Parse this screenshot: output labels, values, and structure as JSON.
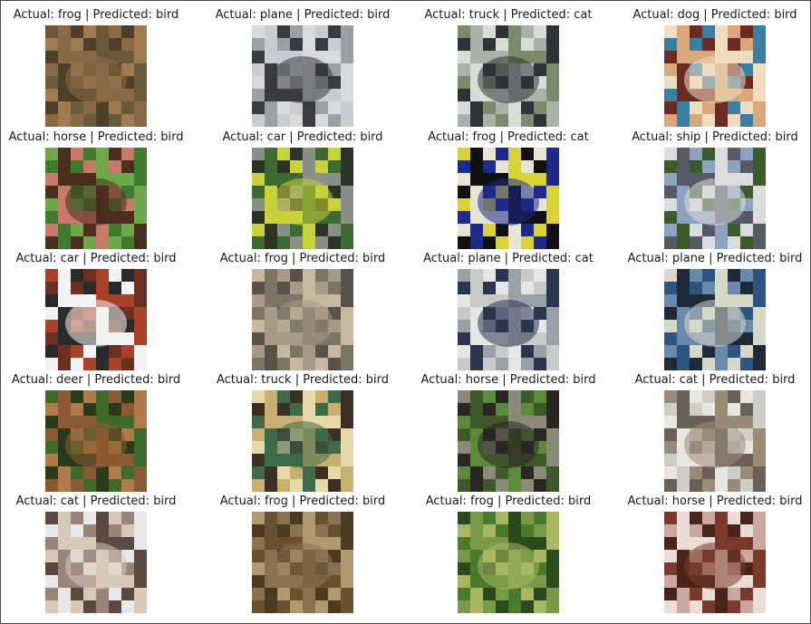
{
  "items": [
    {
      "actual": "frog",
      "predicted": "bird",
      "caption": "Actual: frog | Predicted: bird",
      "subject": "frog-thumbnail",
      "colors": [
        "#6b5a3a",
        "#8a6a45",
        "#4d3f2a",
        "#a07b50"
      ]
    },
    {
      "actual": "plane",
      "predicted": "bird",
      "caption": "Actual: plane | Predicted: bird",
      "subject": "plane-thumbnail",
      "colors": [
        "#c9ccd0",
        "#3a3b3e",
        "#9aa0a6",
        "#d8dadc"
      ]
    },
    {
      "actual": "truck",
      "predicted": "cat",
      "caption": "Actual: truck | Predicted: cat",
      "subject": "truck-thumbnail",
      "colors": [
        "#d8ddd6",
        "#2e3338",
        "#7a8a6a",
        "#a8b2a8"
      ]
    },
    {
      "actual": "dog",
      "predicted": "bird",
      "caption": "Actual: dog | Predicted: bird",
      "subject": "dog-thumbnail",
      "colors": [
        "#3a7fa3",
        "#f0ddc0",
        "#d8a77a",
        "#6c2a25"
      ]
    },
    {
      "actual": "horse",
      "predicted": "bird",
      "caption": "Actual: horse | Predicted: bird",
      "subject": "horse-thumbnail",
      "colors": [
        "#6fa84a",
        "#4a2e1e",
        "#c87a6a",
        "#3f7a2e"
      ]
    },
    {
      "actual": "car",
      "predicted": "bird",
      "caption": "Actual: car | Predicted: bird",
      "subject": "car-thumbnail",
      "colors": [
        "#3c6a32",
        "#c8d23a",
        "#2b3324",
        "#8a8f88"
      ]
    },
    {
      "actual": "frog",
      "predicted": "cat",
      "caption": "Actual: frog | Predicted: cat",
      "subject": "frog-thumbnail",
      "colors": [
        "#e8e4d4",
        "#1e2a8a",
        "#d8d23a",
        "#111111"
      ]
    },
    {
      "actual": "ship",
      "predicted": "bird",
      "caption": "Actual: ship | Predicted: bird",
      "subject": "ship-thumbnail",
      "colors": [
        "#3d5a2a",
        "#dcdcdc",
        "#555a66",
        "#8aa4c0"
      ]
    },
    {
      "actual": "car",
      "predicted": "bird",
      "caption": "Actual: car | Predicted: bird",
      "subject": "car-thumbnail",
      "colors": [
        "#a8402a",
        "#f2f2f2",
        "#2a2a2a",
        "#6a3022"
      ]
    },
    {
      "actual": "frog",
      "predicted": "bird",
      "caption": "Actual: frog | Predicted: bird",
      "subject": "frog-thumbnail",
      "colors": [
        "#7e7466",
        "#a89a86",
        "#5a5248",
        "#c8b8a0"
      ]
    },
    {
      "actual": "plane",
      "predicted": "cat",
      "caption": "Actual: plane | Predicted: cat",
      "subject": "plane-thumbnail",
      "colors": [
        "#e6e6e4",
        "#2a3550",
        "#9aa0a8",
        "#c9c9c7"
      ]
    },
    {
      "actual": "plane",
      "predicted": "bird",
      "caption": "Actual: plane | Predicted: bird",
      "subject": "plane-thumbnail",
      "colors": [
        "#2e5580",
        "#d8d8c8",
        "#1e2a38",
        "#6a8aaa"
      ]
    },
    {
      "actual": "deer",
      "predicted": "bird",
      "caption": "Actual: deer | Predicted: bird",
      "subject": "deer-thumbnail",
      "colors": [
        "#3e6a2c",
        "#8a5a32",
        "#2a3a1a",
        "#b07a4a"
      ]
    },
    {
      "actual": "truck",
      "predicted": "bird",
      "caption": "Actual: truck | Predicted: bird",
      "subject": "truck-thumbnail",
      "colors": [
        "#c8b070",
        "#3e6a4a",
        "#3a3024",
        "#e6d8a8"
      ]
    },
    {
      "actual": "horse",
      "predicted": "bird",
      "caption": "Actual: horse | Predicted: bird",
      "subject": "horse-thumbnail",
      "colors": [
        "#5a8a3a",
        "#2a2622",
        "#8a8a7a",
        "#3e5a2a"
      ]
    },
    {
      "actual": "cat",
      "predicted": "bird",
      "caption": "Actual: cat | Predicted: bird",
      "subject": "cat-thumbnail",
      "colors": [
        "#cfcdc8",
        "#9a8a78",
        "#6a6058",
        "#e8e6e0"
      ]
    },
    {
      "actual": "cat",
      "predicted": "bird",
      "caption": "Actual: cat | Predicted: bird",
      "subject": "cat-thumbnail",
      "colors": [
        "#5a4a42",
        "#d8c8b8",
        "#9a8478",
        "#e8e8ea"
      ]
    },
    {
      "actual": "frog",
      "predicted": "bird",
      "caption": "Actual: frog | Predicted: bird",
      "subject": "frog-thumbnail",
      "colors": [
        "#6a5030",
        "#8a7250",
        "#4a3a22",
        "#b09a70"
      ]
    },
    {
      "actual": "frog",
      "predicted": "bird",
      "caption": "Actual: frog | Predicted: bird",
      "subject": "frog-thumbnail",
      "colors": [
        "#4a7a2e",
        "#a8b860",
        "#2a4a1e",
        "#7a9a4a"
      ]
    },
    {
      "actual": "horse",
      "predicted": "bird",
      "caption": "Actual: horse | Predicted: bird",
      "subject": "horse-thumbnail",
      "colors": [
        "#c8a8a0",
        "#7a3a2a",
        "#eadcd6",
        "#4a2418"
      ]
    }
  ]
}
